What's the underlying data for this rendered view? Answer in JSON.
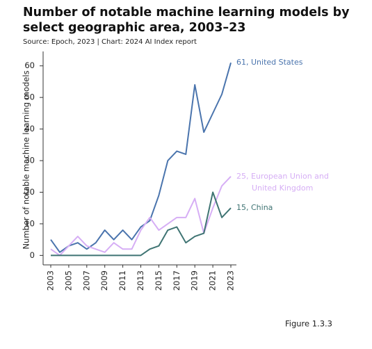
{
  "chart_data": {
    "type": "line",
    "title": [
      "Number of notable machine learning models by",
      "select geographic area, 2003–23"
    ],
    "subtitle": "Source: Epoch, 2023 | Chart: 2024 AI Index report",
    "y_label": "Number of notable machine learning models",
    "figure_label": "Figure 1.3.3",
    "x": [
      2003,
      2004,
      2005,
      2006,
      2007,
      2008,
      2009,
      2010,
      2011,
      2012,
      2013,
      2014,
      2015,
      2016,
      2017,
      2018,
      2019,
      2020,
      2021,
      2022,
      2023
    ],
    "xlim": [
      2003,
      2023
    ],
    "xticks": [
      2003,
      2005,
      2007,
      2009,
      2011,
      2013,
      2015,
      2017,
      2019,
      2021,
      2023
    ],
    "ylim": [
      -3,
      65
    ],
    "yticks": [
      0,
      10,
      20,
      30,
      40,
      50,
      60
    ],
    "grid": false,
    "series": [
      {
        "label": [
          "61, United States"
        ],
        "color": "#4a74ad",
        "values": [
          5,
          1,
          3,
          4,
          2,
          4,
          8,
          5,
          8,
          5,
          9,
          11,
          19,
          30,
          33,
          32,
          54,
          39,
          45,
          51,
          61
        ]
      },
      {
        "label": [
          "25, European Union and",
          "United Kingdom"
        ],
        "color": "#d6aef5",
        "values": [
          2,
          0,
          3,
          6,
          3,
          2,
          1,
          4,
          2,
          2,
          8,
          12,
          8,
          10,
          12,
          12,
          18,
          7,
          15,
          22,
          25
        ]
      },
      {
        "label": [
          "15, China"
        ],
        "color": "#3f7473",
        "values": [
          0,
          0,
          0,
          0,
          0,
          0,
          0,
          0,
          0,
          0,
          0,
          2,
          3,
          8,
          9,
          4,
          6,
          7,
          20,
          12,
          15
        ]
      }
    ]
  }
}
